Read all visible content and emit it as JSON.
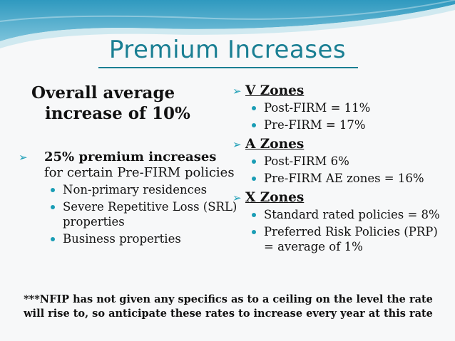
{
  "title": "Premium Increases",
  "headline": {
    "line1": "Overall average",
    "line2": "increase of 10%"
  },
  "left": {
    "main_bold": "25% premium increases",
    "main_rest": "for certain Pre-FIRM policies",
    "items": [
      "Non-primary residences",
      "Severe Repetitive Loss (SRL) properties",
      "Business properties"
    ]
  },
  "zones": [
    {
      "name": "V Zones",
      "items": [
        "Post-FIRM = 11%",
        "Pre-FIRM = 17%"
      ]
    },
    {
      "name": "A Zones",
      "items": [
        "Post-FIRM 6%",
        "Pre-FIRM AE zones = 16%"
      ]
    },
    {
      "name": "X Zones",
      "items": [
        "Standard rated policies = 8%",
        "Preferred Risk Policies (PRP) = average of 1%"
      ]
    }
  ],
  "footer": "***NFIP has not given any specifics as to a ceiling on the level the rate will rise to, so anticipate these rates to increase every year at this rate",
  "colors": {
    "accent": "#1a7f93",
    "bullet": "#1a9db5",
    "wave_dark": "#2a8fb5",
    "wave_light": "#b8dde9"
  }
}
